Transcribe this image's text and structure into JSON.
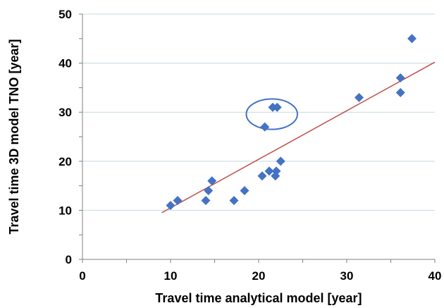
{
  "chart_data": {
    "type": "scatter",
    "title": "",
    "xlabel": "Travel time analytical model  [year]",
    "ylabel": "Travel time 3D model TNO  [year]",
    "xlim": [
      0,
      40
    ],
    "ylim": [
      0,
      50
    ],
    "x_ticks": [
      "0",
      "10",
      "20",
      "30",
      "40"
    ],
    "y_ticks": [
      "0",
      "10",
      "20",
      "30",
      "40",
      "50"
    ],
    "grid": "horizontal",
    "legend": "none",
    "series": [
      {
        "marker": "diamond",
        "color": "#4472C4",
        "points": [
          {
            "x": 10.0,
            "y": 11
          },
          {
            "x": 10.8,
            "y": 12
          },
          {
            "x": 14.0,
            "y": 12
          },
          {
            "x": 14.3,
            "y": 14
          },
          {
            "x": 14.7,
            "y": 16
          },
          {
            "x": 17.2,
            "y": 12
          },
          {
            "x": 18.4,
            "y": 14
          },
          {
            "x": 20.4,
            "y": 17
          },
          {
            "x": 20.7,
            "y": 27
          },
          {
            "x": 21.2,
            "y": 18
          },
          {
            "x": 21.6,
            "y": 31
          },
          {
            "x": 21.9,
            "y": 17
          },
          {
            "x": 22.0,
            "y": 18
          },
          {
            "x": 22.1,
            "y": 31
          },
          {
            "x": 22.5,
            "y": 20
          },
          {
            "x": 31.4,
            "y": 33
          },
          {
            "x": 36.1,
            "y": 37
          },
          {
            "x": 36.1,
            "y": 34
          },
          {
            "x": 37.4,
            "y": 45
          }
        ]
      }
    ],
    "trendline": {
      "color": "#C0504D",
      "x": [
        9,
        40
      ],
      "y": [
        9.5,
        40.2
      ]
    },
    "annotation": {
      "type": "ellipse",
      "color": "#4472C4",
      "cx": 21.5,
      "cy": 29.6,
      "rx": 2.9,
      "ry": 3.1
    }
  }
}
